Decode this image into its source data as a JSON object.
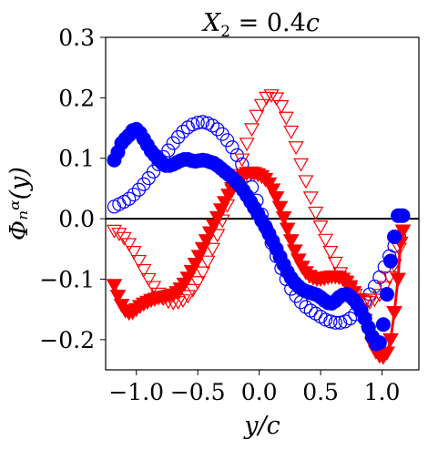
{
  "chart_data": {
    "type": "scatter",
    "title": "X₂ = 0.4c",
    "title_parts": {
      "var": "X",
      "sub": "2",
      "eq": " = 0.4",
      "unit": "c"
    },
    "xlabel": "y/c",
    "ylabel": "Φₙᵅ(y)",
    "xlim": [
      -1.25,
      1.3
    ],
    "ylim": [
      -0.25,
      0.3
    ],
    "xticks": [
      -1.0,
      -0.5,
      0.0,
      0.5,
      1.0
    ],
    "xtick_labels": [
      "−1.0",
      "−0.5",
      "0.0",
      "0.5",
      "1.0"
    ],
    "yticks": [
      0.3,
      0.2,
      0.1,
      0.0,
      -0.1,
      -0.2
    ],
    "ytick_labels": [
      "0.3",
      "0.2",
      "0.1",
      "0.0",
      "−0.1",
      "−0.2"
    ],
    "reference_line_y": 0.0,
    "grid": false,
    "legend": "none",
    "series": [
      {
        "marker": "circle",
        "fill": "filled",
        "color": "#0000ff",
        "x": [
          -1.18,
          -1.15,
          -1.12,
          -1.09,
          -1.06,
          -1.03,
          -1.0,
          -0.97,
          -0.94,
          -0.91,
          -0.88,
          -0.85,
          -0.82,
          -0.79,
          -0.76,
          -0.73,
          -0.7,
          -0.67,
          -0.64,
          -0.61,
          -0.58,
          -0.55,
          -0.52,
          -0.49,
          -0.46,
          -0.43,
          -0.4,
          -0.37,
          -0.34,
          -0.31,
          -0.28,
          -0.25,
          -0.22,
          -0.19,
          -0.16,
          -0.13,
          -0.1,
          -0.07,
          -0.04,
          -0.01,
          0.02,
          0.05,
          0.08,
          0.11,
          0.14,
          0.17,
          0.2,
          0.23,
          0.26,
          0.29,
          0.32,
          0.35,
          0.38,
          0.41,
          0.44,
          0.47,
          0.5,
          0.53,
          0.56,
          0.59,
          0.62,
          0.65,
          0.68,
          0.71,
          0.74,
          0.77,
          0.8,
          0.83,
          0.86,
          0.89,
          0.92,
          0.95,
          0.98,
          1.01,
          1.04,
          1.07,
          1.1,
          1.13,
          1.15,
          1.17
        ],
        "y": [
          0.097,
          0.11,
          0.125,
          0.132,
          0.138,
          0.146,
          0.148,
          0.142,
          0.132,
          0.122,
          0.112,
          0.105,
          0.098,
          0.092,
          0.088,
          0.088,
          0.09,
          0.093,
          0.096,
          0.098,
          0.098,
          0.096,
          0.095,
          0.096,
          0.097,
          0.096,
          0.094,
          0.092,
          0.088,
          0.083,
          0.078,
          0.073,
          0.068,
          0.062,
          0.055,
          0.047,
          0.038,
          0.028,
          0.018,
          0.008,
          -0.003,
          -0.013,
          -0.025,
          -0.037,
          -0.05,
          -0.063,
          -0.076,
          -0.088,
          -0.098,
          -0.106,
          -0.112,
          -0.117,
          -0.12,
          -0.122,
          -0.124,
          -0.126,
          -0.13,
          -0.135,
          -0.139,
          -0.14,
          -0.136,
          -0.13,
          -0.126,
          -0.125,
          -0.128,
          -0.134,
          -0.142,
          -0.152,
          -0.165,
          -0.18,
          -0.195,
          -0.207,
          -0.205,
          -0.175,
          -0.125,
          -0.07,
          -0.03,
          0.005,
          0.005,
          0.005
        ]
      },
      {
        "marker": "circle",
        "fill": "open",
        "color": "#0000ff",
        "x": [
          -1.18,
          -1.14,
          -1.1,
          -1.06,
          -1.02,
          -0.98,
          -0.94,
          -0.9,
          -0.86,
          -0.82,
          -0.78,
          -0.74,
          -0.7,
          -0.66,
          -0.62,
          -0.58,
          -0.54,
          -0.5,
          -0.46,
          -0.42,
          -0.38,
          -0.34,
          -0.3,
          -0.26,
          -0.22,
          -0.18,
          -0.14,
          -0.1,
          -0.06,
          -0.02,
          0.02,
          0.06,
          0.1,
          0.14,
          0.18,
          0.22,
          0.26,
          0.3,
          0.34,
          0.38,
          0.42,
          0.46,
          0.5,
          0.54,
          0.58,
          0.62,
          0.66,
          0.7,
          0.74,
          0.78,
          0.82,
          0.86,
          0.9,
          0.94,
          0.98,
          1.02,
          1.06,
          1.1,
          1.14
        ],
        "y": [
          0.02,
          0.024,
          0.028,
          0.033,
          0.04,
          0.048,
          0.057,
          0.067,
          0.078,
          0.09,
          0.102,
          0.113,
          0.125,
          0.135,
          0.144,
          0.151,
          0.156,
          0.159,
          0.16,
          0.158,
          0.154,
          0.148,
          0.14,
          0.13,
          0.118,
          0.105,
          0.09,
          0.072,
          0.052,
          0.03,
          0.007,
          -0.017,
          -0.04,
          -0.062,
          -0.082,
          -0.1,
          -0.116,
          -0.128,
          -0.138,
          -0.146,
          -0.152,
          -0.157,
          -0.162,
          -0.167,
          -0.17,
          -0.172,
          -0.172,
          -0.17,
          -0.165,
          -0.158,
          -0.148,
          -0.137,
          -0.125,
          -0.112,
          -0.097,
          -0.08,
          -0.062,
          -0.045,
          -0.03
        ]
      },
      {
        "marker": "triangle-down",
        "fill": "filled",
        "color": "#ff0000",
        "x": [
          -1.18,
          -1.15,
          -1.12,
          -1.09,
          -1.06,
          -1.03,
          -1.0,
          -0.97,
          -0.94,
          -0.91,
          -0.88,
          -0.85,
          -0.82,
          -0.79,
          -0.76,
          -0.73,
          -0.7,
          -0.67,
          -0.64,
          -0.61,
          -0.58,
          -0.55,
          -0.52,
          -0.49,
          -0.46,
          -0.43,
          -0.4,
          -0.37,
          -0.34,
          -0.31,
          -0.28,
          -0.25,
          -0.22,
          -0.19,
          -0.16,
          -0.13,
          -0.1,
          -0.07,
          -0.04,
          -0.01,
          0.02,
          0.05,
          0.08,
          0.11,
          0.14,
          0.17,
          0.2,
          0.23,
          0.26,
          0.29,
          0.32,
          0.35,
          0.38,
          0.41,
          0.44,
          0.47,
          0.5,
          0.53,
          0.56,
          0.59,
          0.62,
          0.65,
          0.68,
          0.71,
          0.74,
          0.77,
          0.8,
          0.83,
          0.86,
          0.89,
          0.92,
          0.95,
          0.98,
          1.01,
          1.04,
          1.07,
          1.1,
          1.13,
          1.15,
          1.17
        ],
        "y": [
          -0.11,
          -0.128,
          -0.143,
          -0.152,
          -0.156,
          -0.155,
          -0.15,
          -0.145,
          -0.141,
          -0.138,
          -0.135,
          -0.133,
          -0.131,
          -0.13,
          -0.129,
          -0.128,
          -0.126,
          -0.122,
          -0.116,
          -0.108,
          -0.098,
          -0.087,
          -0.075,
          -0.062,
          -0.049,
          -0.036,
          -0.023,
          -0.011,
          0.002,
          0.015,
          0.027,
          0.039,
          0.05,
          0.06,
          0.067,
          0.072,
          0.075,
          0.076,
          0.075,
          0.073,
          0.07,
          0.065,
          0.058,
          0.048,
          0.035,
          0.019,
          0.002,
          -0.017,
          -0.036,
          -0.053,
          -0.068,
          -0.08,
          -0.089,
          -0.095,
          -0.098,
          -0.1,
          -0.1,
          -0.099,
          -0.097,
          -0.096,
          -0.096,
          -0.097,
          -0.1,
          -0.105,
          -0.112,
          -0.122,
          -0.135,
          -0.15,
          -0.168,
          -0.188,
          -0.207,
          -0.22,
          -0.227,
          -0.229,
          -0.222,
          -0.2,
          -0.155,
          -0.1,
          -0.04,
          -0.02
        ]
      },
      {
        "marker": "triangle-down",
        "fill": "open",
        "color": "#ff0000",
        "x": [
          -1.18,
          -1.14,
          -1.1,
          -1.06,
          -1.02,
          -0.98,
          -0.94,
          -0.9,
          -0.86,
          -0.82,
          -0.78,
          -0.74,
          -0.7,
          -0.66,
          -0.62,
          -0.58,
          -0.54,
          -0.5,
          -0.46,
          -0.42,
          -0.38,
          -0.34,
          -0.3,
          -0.26,
          -0.22,
          -0.18,
          -0.14,
          -0.1,
          -0.06,
          -0.02,
          0.02,
          0.06,
          0.1,
          0.14,
          0.18,
          0.22,
          0.26,
          0.3,
          0.34,
          0.38,
          0.42,
          0.46,
          0.5,
          0.54,
          0.58,
          0.62,
          0.66,
          0.7,
          0.74,
          0.78,
          0.82,
          0.86,
          0.9,
          0.94,
          0.98,
          1.02,
          1.06,
          1.1,
          1.14
        ],
        "y": [
          -0.02,
          -0.025,
          -0.032,
          -0.042,
          -0.055,
          -0.07,
          -0.085,
          -0.1,
          -0.113,
          -0.124,
          -0.132,
          -0.137,
          -0.139,
          -0.138,
          -0.135,
          -0.128,
          -0.118,
          -0.105,
          -0.089,
          -0.071,
          -0.05,
          -0.027,
          -0.003,
          0.022,
          0.047,
          0.072,
          0.098,
          0.124,
          0.148,
          0.17,
          0.188,
          0.2,
          0.204,
          0.199,
          0.186,
          0.167,
          0.144,
          0.118,
          0.09,
          0.062,
          0.035,
          0.01,
          -0.013,
          -0.035,
          -0.055,
          -0.073,
          -0.09,
          -0.104,
          -0.116,
          -0.126,
          -0.133,
          -0.137,
          -0.138,
          -0.134,
          -0.126,
          -0.113,
          -0.097,
          -0.077,
          -0.05
        ]
      }
    ]
  }
}
